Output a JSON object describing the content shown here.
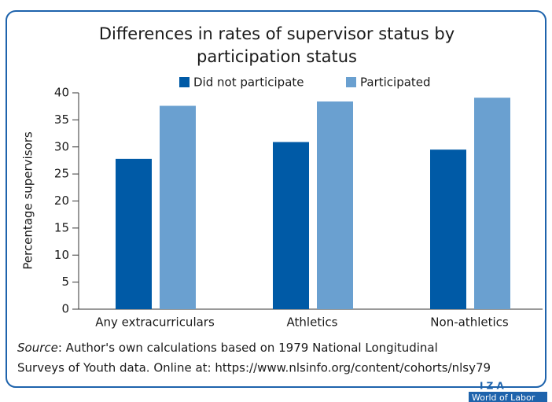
{
  "chart_data": {
    "type": "bar",
    "title": [
      "Differences in rates of supervisor status by",
      "participation status"
    ],
    "y_label": "Percentage supervisors",
    "categories": [
      "Any extracurriculars",
      "Athletics",
      "Non-athletics"
    ],
    "series": [
      {
        "name": "Did not participate",
        "color": "#005aa6",
        "values": [
          27.8,
          30.9,
          29.5
        ]
      },
      {
        "name": "Participated",
        "color": "#6aa0d0",
        "values": [
          37.6,
          38.4,
          39.1
        ]
      }
    ],
    "ylim": [
      0,
      40
    ],
    "yticks": [
      0,
      5,
      10,
      15,
      20,
      25,
      30,
      35,
      40
    ],
    "grid": false,
    "legend": "top",
    "source_label": "Source",
    "source_lines": [
      ": Author's own calculations based on 1979 National Longitudinal",
      "Surveys of Youth data. Online at: https://www.nlsinfo.org/content/cohorts/nlsy79"
    ],
    "logo": [
      "I Z A",
      "World of Labor"
    ]
  }
}
